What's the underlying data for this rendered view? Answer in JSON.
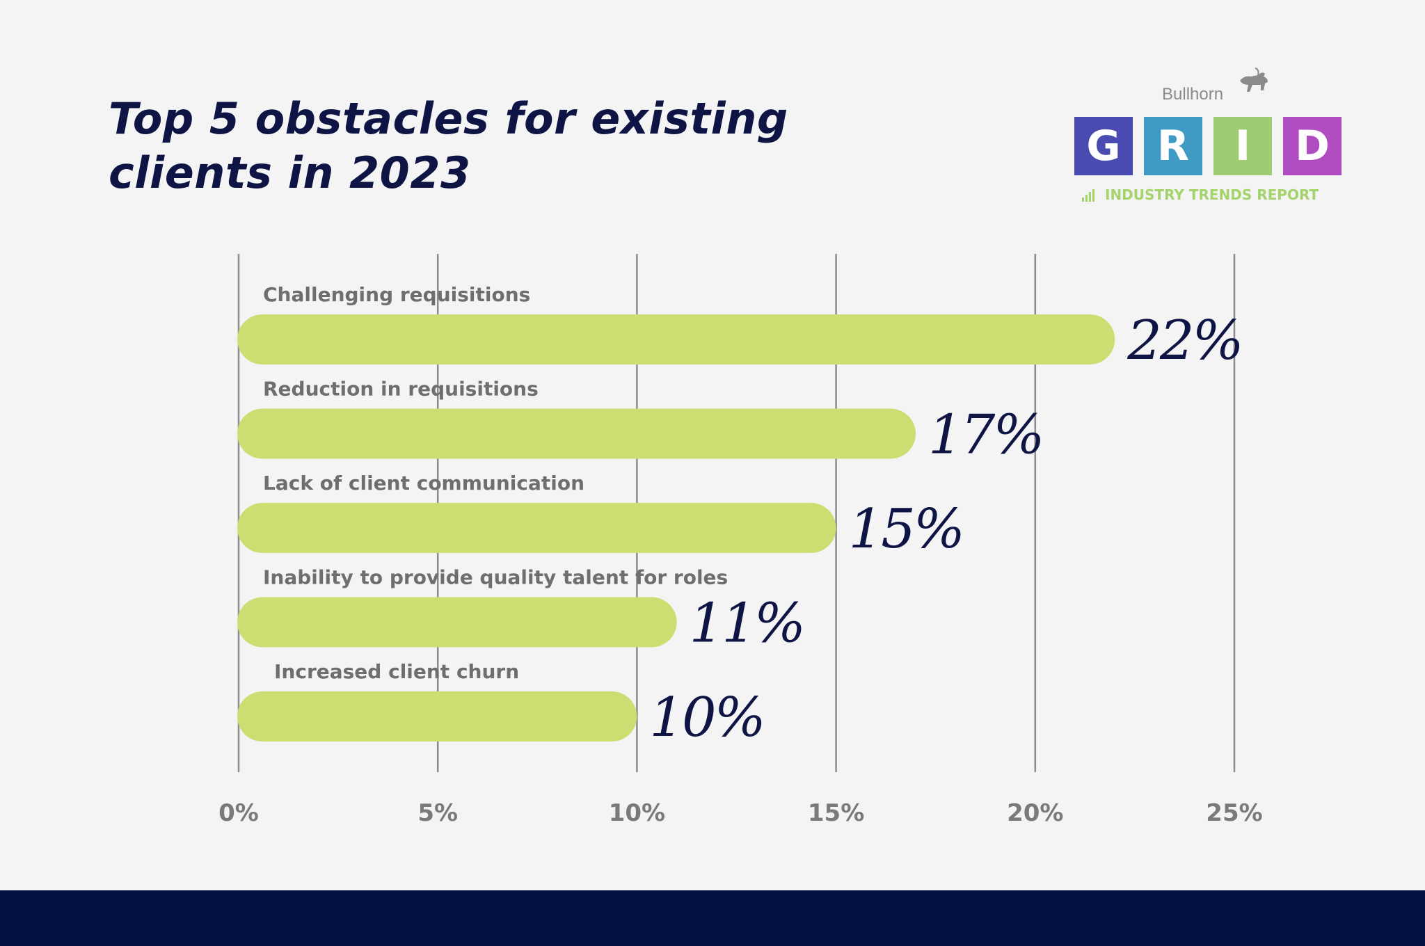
{
  "title_lines": [
    "Top 5 obstacles for existing",
    "clients in 2023"
  ],
  "logo": {
    "brand": "Bullhorn",
    "letters": [
      "G",
      "R",
      "I",
      "D"
    ],
    "tile_colors": [
      "#4a4bb1",
      "#3f9ac4",
      "#9fcb72",
      "#b04dc1"
    ],
    "tagline": "INDUSTRY TRENDS REPORT",
    "icons": [
      "bull-icon",
      "bar-chart-icon"
    ]
  },
  "colors": {
    "bar": "#cddd72",
    "value_text": "#0e1545",
    "category_text": "#6e6e6e",
    "tick_text": "#7a7a7a",
    "gridline": "#8c8c8c",
    "footer": "#00113f"
  },
  "chart_data": {
    "type": "bar",
    "orientation": "horizontal",
    "categories": [
      "Challenging requisitions",
      "Reduction in requisitions",
      "Lack of client communication",
      "Inability to provide quality talent for roles",
      "Increased client churn"
    ],
    "values": [
      22,
      17,
      15,
      11,
      10
    ],
    "value_labels": [
      "22%",
      "17%",
      "15%",
      "11%",
      "10%"
    ],
    "xlim": [
      0,
      25
    ],
    "x_ticks": [
      0,
      5,
      10,
      15,
      20,
      25
    ],
    "x_tick_labels": [
      "0%",
      "5%",
      "10%",
      "15%",
      "20%",
      "25%"
    ],
    "grid": true
  }
}
